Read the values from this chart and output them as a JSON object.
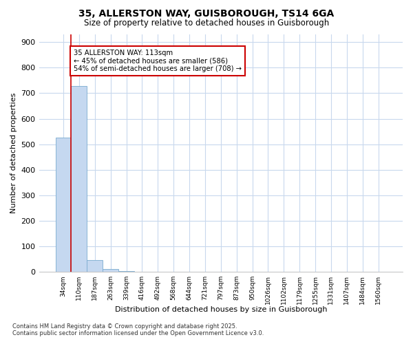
{
  "title_line1": "35, ALLERSTON WAY, GUISBOROUGH, TS14 6GA",
  "title_line2": "Size of property relative to detached houses in Guisborough",
  "xlabel": "Distribution of detached houses by size in Guisborough",
  "ylabel": "Number of detached properties",
  "categories": [
    "34sqm",
    "110sqm",
    "187sqm",
    "263sqm",
    "339sqm",
    "416sqm",
    "492sqm",
    "568sqm",
    "644sqm",
    "721sqm",
    "797sqm",
    "873sqm",
    "950sqm",
    "1026sqm",
    "1102sqm",
    "1179sqm",
    "1255sqm",
    "1331sqm",
    "1407sqm",
    "1484sqm",
    "1560sqm"
  ],
  "values": [
    526,
    728,
    47,
    11,
    4,
    0,
    0,
    0,
    0,
    0,
    0,
    0,
    0,
    0,
    0,
    0,
    0,
    0,
    0,
    0,
    0
  ],
  "bar_color": "#c5d8f0",
  "bar_edge_color": "#7aabcf",
  "background_color": "#ffffff",
  "plot_bg_color": "#ffffff",
  "grid_color": "#c8d8ed",
  "annotation_box_color": "#cc0000",
  "annotation_text_line1": "35 ALLERSTON WAY: 113sqm",
  "annotation_text_line2": "← 45% of detached houses are smaller (586)",
  "annotation_text_line3": "54% of semi-detached houses are larger (708) →",
  "vline_color": "#cc0000",
  "footer_line1": "Contains HM Land Registry data © Crown copyright and database right 2025.",
  "footer_line2": "Contains public sector information licensed under the Open Government Licence v3.0.",
  "ylim": [
    0,
    930
  ],
  "yticks": [
    0,
    100,
    200,
    300,
    400,
    500,
    600,
    700,
    800,
    900
  ]
}
